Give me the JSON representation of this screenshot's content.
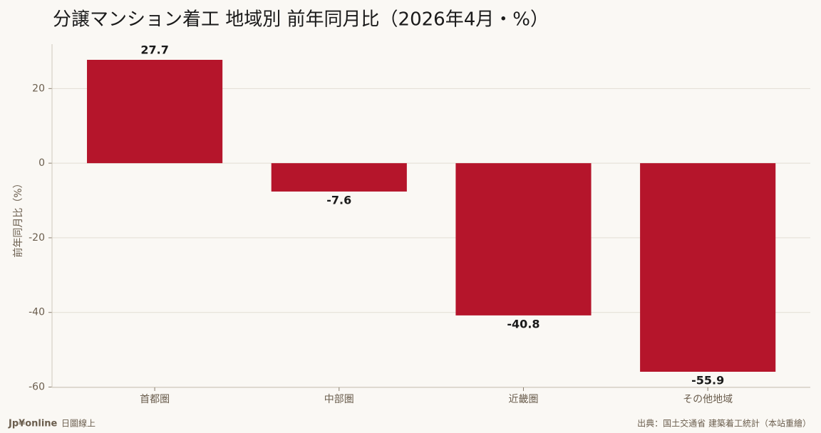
{
  "chart_data": {
    "type": "bar",
    "title": "分譲マンション着工 地域別 前年同月比（2026年4月・%）",
    "y_label": "前年同月比（%）",
    "categories": [
      "首都圏",
      "中部圏",
      "近畿圏",
      "その他地域"
    ],
    "values": [
      27.7,
      -7.6,
      -40.8,
      -55.9
    ],
    "color": "#b5152b",
    "ylim": [
      -60.1,
      31.9
    ],
    "yticks": [
      -60,
      -40,
      -20,
      0,
      20
    ],
    "grid": true,
    "brand": "Jp¥online",
    "brand_sub": "日圖線上",
    "source": "出典：国土交通省 建築着工統計（本站重繪）"
  }
}
